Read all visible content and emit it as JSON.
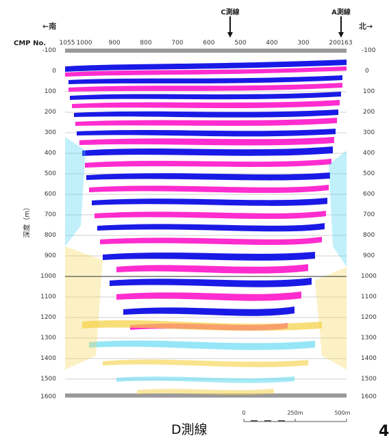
{
  "directions": {
    "south": "←南",
    "north": "北→"
  },
  "survey_lines": {
    "c_line": "C測線",
    "a_line": "A測線"
  },
  "axis": {
    "cmp_title": "CMP No.",
    "cmp_ticks": [
      "1055",
      "1000",
      "900",
      "800",
      "700",
      "600",
      "500",
      "400",
      "300",
      "200",
      "163"
    ],
    "depth_ticks": [
      "-100",
      "0",
      "100",
      "200",
      "300",
      "400",
      "500",
      "600",
      "700",
      "800",
      "900",
      "1000",
      "1100",
      "1200",
      "1300",
      "1400",
      "1500",
      "1600"
    ],
    "ylabel": "深度（m）"
  },
  "scale_bar": {
    "labels": [
      "0",
      "250m",
      "500m"
    ]
  },
  "section_title": "D測線",
  "corner_mark": "4",
  "colors": {
    "positive": "#ff2ccf",
    "negative": "#1a1ae6",
    "light_positive": "#f5d040",
    "light_negative": "#4fd5f0",
    "background": "#ffffff"
  }
}
